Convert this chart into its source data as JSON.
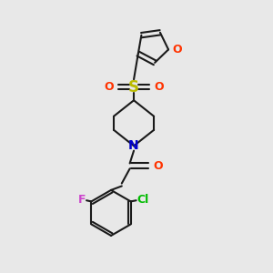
{
  "bg_color": "#e8e8e8",
  "bond_color": "#1a1a1a",
  "furan_O_color": "#ff3300",
  "S_color": "#bbbb00",
  "SO2_O_color": "#ff3300",
  "N_color": "#0000cc",
  "carbonyl_O_color": "#ff3300",
  "Cl_color": "#00bb00",
  "F_color": "#cc44cc",
  "bond_width": 1.5,
  "figsize": [
    3.0,
    3.0
  ],
  "dpi": 100,
  "xlim": [
    0,
    10
  ],
  "ylim": [
    0,
    10
  ]
}
